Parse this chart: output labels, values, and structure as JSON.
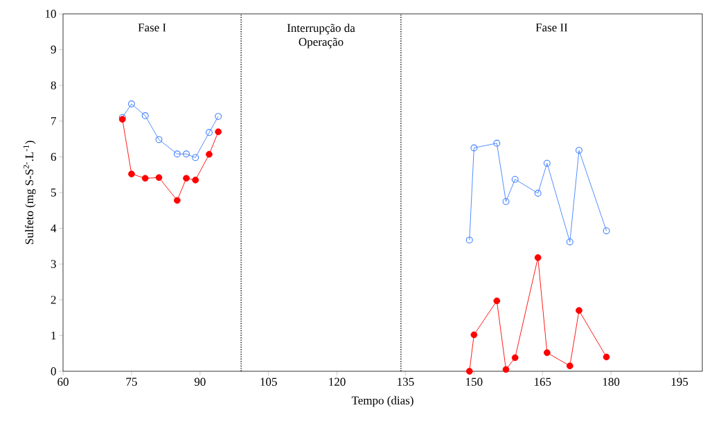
{
  "chart_data": {
    "type": "line",
    "xlabel": "Tempo (dias)",
    "ylabel": "Sulfeto (mg S-S$^{2-}$.L$^{-1}$)",
    "series": [
      {
        "color": "#3f7fff",
        "marker": "open circle",
        "x": [
          73,
          75,
          78,
          81,
          85,
          87,
          89,
          92,
          94
        ],
        "values": [
          7.1,
          7.48,
          7.15,
          6.48,
          6.08,
          6.08,
          5.98,
          6.68,
          7.13
        ]
      },
      {
        "color": "#ff0000",
        "marker": "circle",
        "x": [
          73,
          75,
          78,
          81,
          85,
          87,
          89,
          92,
          94
        ],
        "values": [
          7.05,
          5.52,
          5.4,
          5.42,
          4.78,
          5.4,
          5.35,
          6.07,
          6.7
        ]
      },
      {
        "color": "#3f7fff",
        "marker": "open circle",
        "x": [
          149,
          150,
          155,
          157,
          159,
          164,
          166,
          171,
          173,
          179
        ],
        "values": [
          3.67,
          6.25,
          6.38,
          4.75,
          5.37,
          4.98,
          5.82,
          3.62,
          6.18,
          3.93
        ]
      },
      {
        "color": "#ff0000",
        "marker": "circle",
        "x": [
          149,
          150,
          155,
          157,
          159,
          164,
          166,
          171,
          173,
          179
        ],
        "values": [
          0,
          1.02,
          1.97,
          0.05,
          0.38,
          3.18,
          0.52,
          0.15,
          1.7,
          0.4
        ]
      }
    ],
    "ref_lines": [
      {
        "axis": "x",
        "value": 99,
        "color": "#000000",
        "line_style": "dotted"
      },
      {
        "axis": "x",
        "value": 134,
        "color": "#000000",
        "line_style": "dotted"
      }
    ],
    "annotations": [
      "Fase I",
      "Interrupção da\nOperação",
      "Fase II"
    ],
    "xlim": [
      60,
      200
    ],
    "ylim": [
      0,
      10
    ],
    "xticks": [
      60,
      75,
      90,
      105,
      120,
      135,
      150,
      165,
      180,
      195
    ],
    "yticks": [
      0,
      1,
      2,
      3,
      4,
      5,
      6,
      7,
      8,
      9,
      10
    ],
    "grid": false
  }
}
